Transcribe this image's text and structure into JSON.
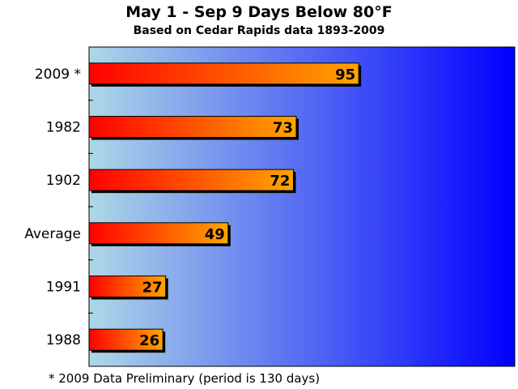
{
  "chart_data": {
    "type": "bar",
    "orientation": "horizontal",
    "title": "May 1 - Sep 9 Days Below 80°F",
    "subtitle": "Based on Cedar Rapids data 1893-2009",
    "categories": [
      "2009 *",
      "1982",
      "1902",
      "Average",
      "1991",
      "1988"
    ],
    "values": [
      95,
      73,
      72,
      49,
      27,
      26
    ],
    "xlim": [
      0,
      150
    ],
    "data_labels": true,
    "grid": false,
    "footnote": "* 2009 Data Preliminary (period is 130 days)",
    "colors": {
      "bar_start": "#ff0000",
      "bar_end": "#ffa500",
      "plot_bg_start": "#add8e6",
      "plot_bg_end": "#0000ff"
    }
  }
}
